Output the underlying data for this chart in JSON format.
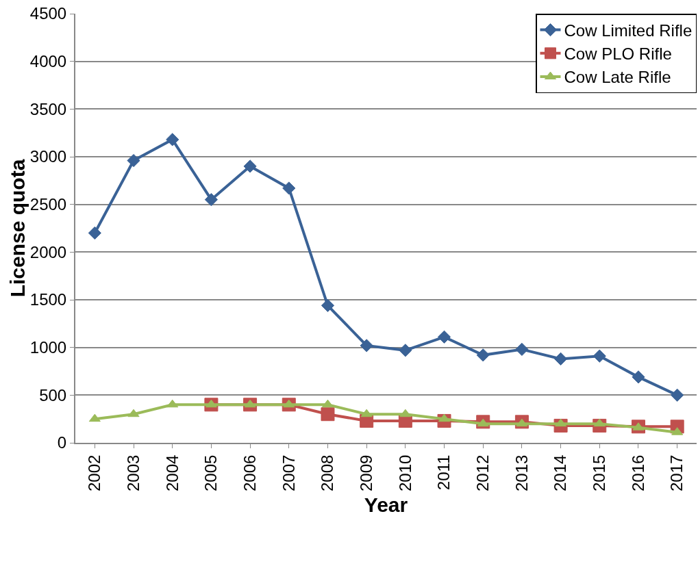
{
  "chart_data": {
    "type": "line",
    "xlabel": "Year",
    "ylabel": "License quota",
    "categories": [
      "2002",
      "2003",
      "2004",
      "2005",
      "2006",
      "2007",
      "2008",
      "2009",
      "2010",
      "2011",
      "2012",
      "2013",
      "2014",
      "2015",
      "2016",
      "2017"
    ],
    "series": [
      {
        "name": "Cow Limited Rifle",
        "color": "#3a6296",
        "marker": "diamond",
        "values": [
          2200,
          2960,
          3180,
          2550,
          2900,
          2670,
          1440,
          1020,
          970,
          1110,
          920,
          980,
          880,
          910,
          690,
          500
        ]
      },
      {
        "name": "Cow PLO Rifle",
        "color": "#c0504d",
        "marker": "square",
        "values": [
          null,
          null,
          null,
          400,
          400,
          400,
          300,
          230,
          230,
          230,
          220,
          220,
          180,
          180,
          170,
          170
        ]
      },
      {
        "name": "Cow Late Rifle",
        "color": "#9bbb59",
        "marker": "triangle",
        "values": [
          250,
          300,
          400,
          400,
          400,
          400,
          400,
          300,
          300,
          250,
          200,
          200,
          200,
          200,
          160,
          110
        ]
      }
    ],
    "ylim": [
      0,
      4500
    ],
    "yticks": [
      0,
      500,
      1000,
      1500,
      2000,
      2500,
      3000,
      3500,
      4000,
      4500
    ],
    "grid": "y",
    "legend": "top right",
    "line_style": "solid"
  }
}
